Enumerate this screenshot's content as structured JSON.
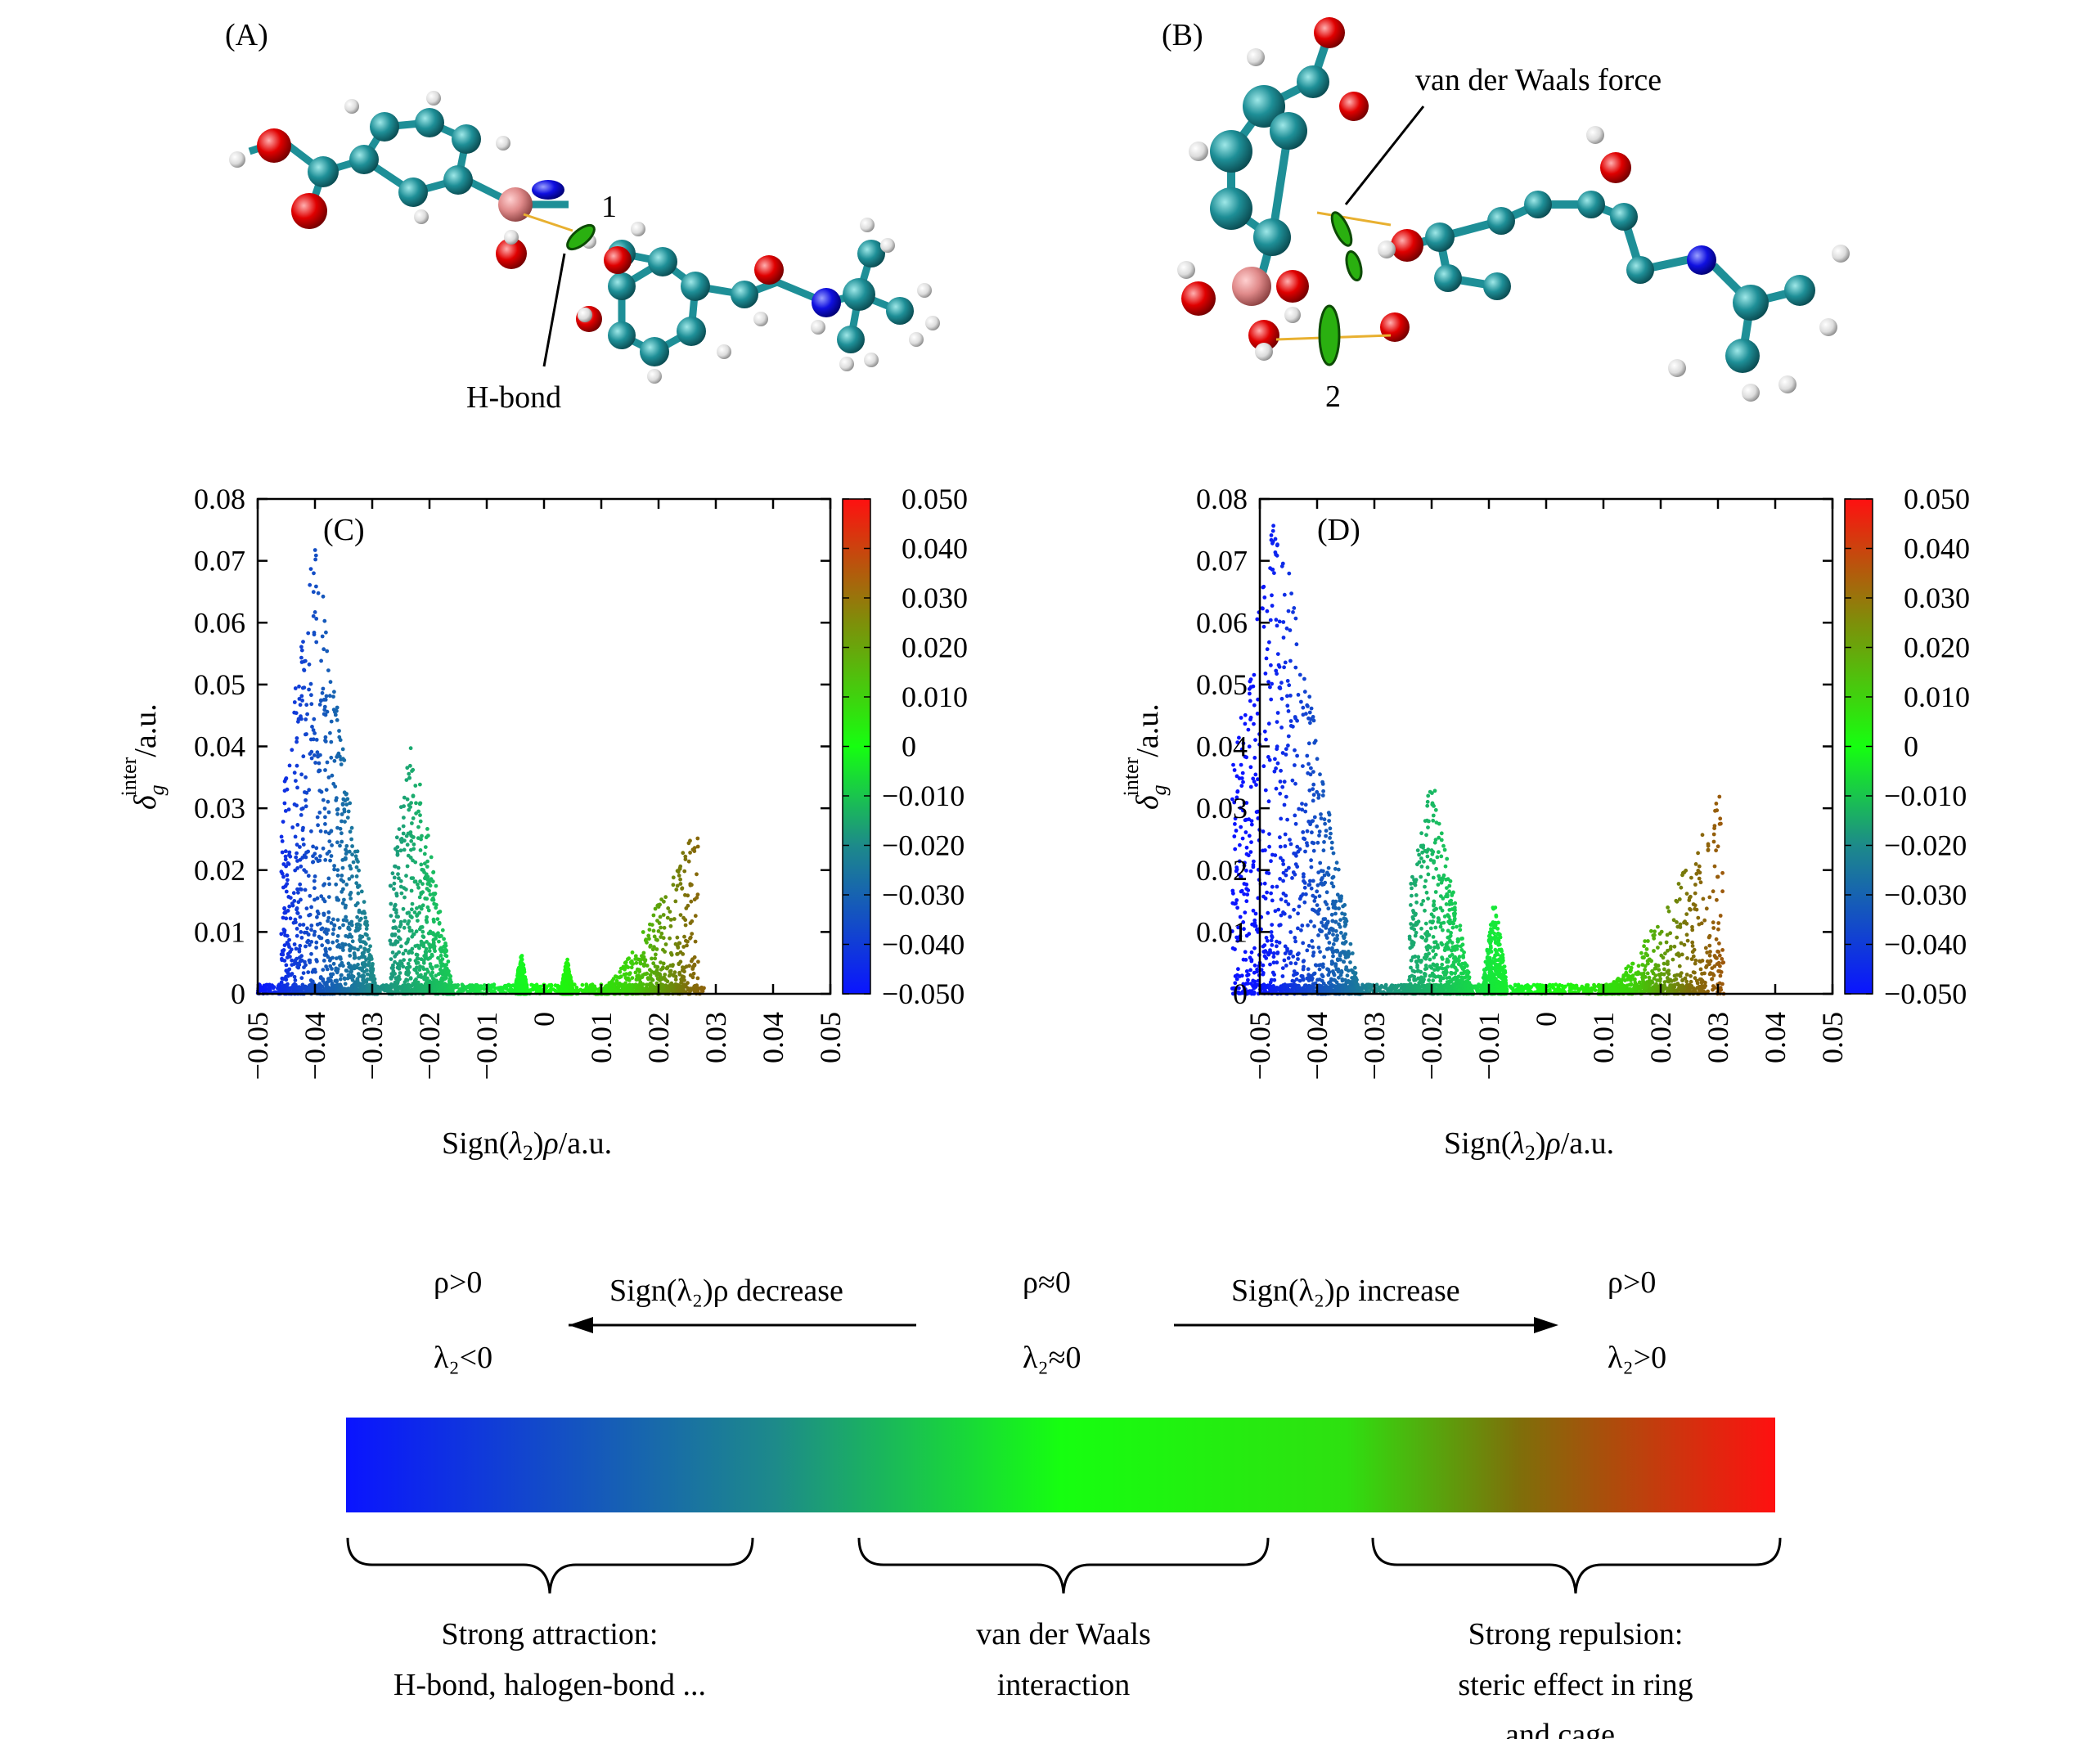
{
  "panels": {
    "a_label": "(A)",
    "b_label": "(B)",
    "a_annotations": {
      "hbond": "H-bond",
      "site": "1"
    },
    "b_annotations": {
      "vdw": "van der Waals force",
      "site": "2"
    }
  },
  "colorbar_ticks": [
    "0.050",
    "0.040",
    "0.030",
    "0.020",
    "0.010",
    "0",
    "−0.010",
    "−0.020",
    "−0.030",
    "−0.040",
    "−0.050"
  ],
  "colors": {
    "blue": "#0a14ff",
    "green": "#16ff10",
    "red": "#ff1010",
    "teal": "#1d8a8a",
    "olive": "#7e6f0a"
  },
  "chart_data": [
    {
      "type": "scatter",
      "panel": "(C)",
      "xlabel": "Sign(λ₂)ρ/a.u.",
      "ylabel": "δg inter/a.u.",
      "xlim": [
        -0.05,
        0.05
      ],
      "ylim": [
        0,
        0.08
      ],
      "xticks": [
        "−0.05",
        "−0.04",
        "−0.03",
        "−0.02",
        "−0.01",
        "0",
        "0.01",
        "0.02",
        "0.03",
        "0.04",
        "0.05"
      ],
      "yticks": [
        "0",
        "0.01",
        "0.02",
        "0.03",
        "0.04",
        "0.05",
        "0.06",
        "0.07",
        "0.08"
      ],
      "peaks": [
        {
          "x": -0.04,
          "y": 0.074,
          "width": 0.012
        },
        {
          "x": -0.023,
          "y": 0.042,
          "width": 0.008
        },
        {
          "x": -0.004,
          "y": 0.007,
          "width": 0.002
        },
        {
          "x": 0.004,
          "y": 0.006,
          "width": 0.002
        },
        {
          "x": 0.027,
          "y": 0.03,
          "width": 0.018
        }
      ]
    },
    {
      "type": "scatter",
      "panel": "(D)",
      "xlabel": "Sign(λ₂)ρ/a.u.",
      "ylabel": "δg inter/a.u.",
      "xlim": [
        -0.05,
        0.05
      ],
      "ylim": [
        0,
        0.08
      ],
      "xticks": [
        "−0.05",
        "−0.04",
        "−0.03",
        "−0.02",
        "−0.01",
        "0",
        "0.01",
        "0.02",
        "0.03",
        "0.04",
        "0.05"
      ],
      "yticks": [
        "0",
        "0.01",
        "0.02",
        "0.03",
        "0.04",
        "0.05",
        "0.06",
        "0.07",
        "0.08"
      ],
      "peaks": [
        {
          "x": -0.047,
          "y": 0.08,
          "width": 0.016
        },
        {
          "x": -0.02,
          "y": 0.036,
          "width": 0.008
        },
        {
          "x": -0.009,
          "y": 0.016,
          "width": 0.004
        },
        {
          "x": 0.031,
          "y": 0.034,
          "width": 0.022
        }
      ]
    }
  ],
  "legend": {
    "left_rho": "ρ>0",
    "left_lambda": "λ₂<0",
    "decrease": "Sign(λ₂)ρ decrease",
    "mid_rho": "ρ≈0",
    "mid_lambda": "λ₂≈0",
    "increase": "Sign(λ₂)ρ increase",
    "right_rho": "ρ>0",
    "right_lambda": "λ₂>0",
    "attraction_line1": "Strong attraction:",
    "attraction_line2": "H-bond, halogen-bond ...",
    "vdw_line1": "van der Waals",
    "vdw_line2": "interaction",
    "repulsion_line1": "Strong repulsion:",
    "repulsion_line2": "steric effect in ring",
    "repulsion_line3": "and cage ..."
  }
}
